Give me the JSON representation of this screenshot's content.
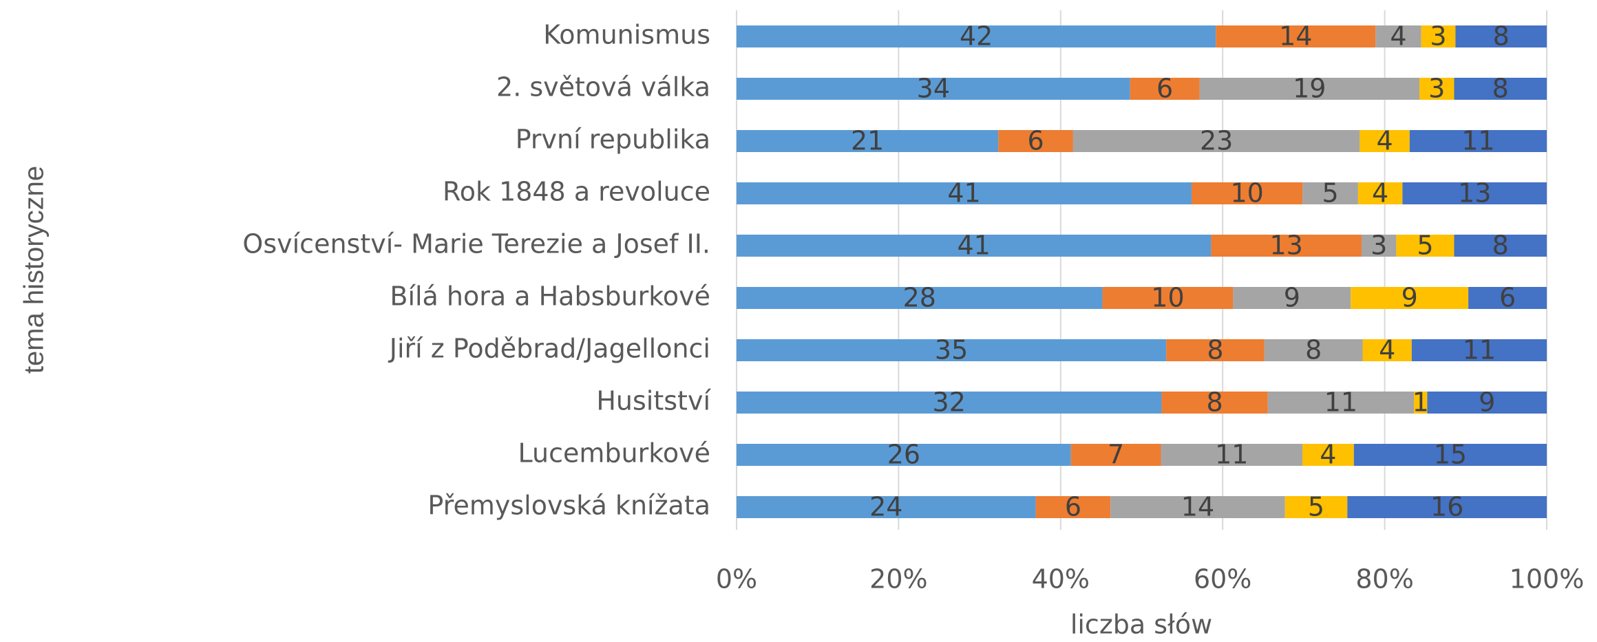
{
  "chart_data": {
    "type": "bar",
    "orientation": "horizontal",
    "stacked": "percent",
    "x_label": "liczba słów",
    "y_label": "tema historyczne",
    "categories": [
      "Komunismus",
      "2. světová válka",
      "První republika",
      "Rok 1848 a revoluce",
      "Osvícenství- Marie Terezie a Josef II.",
      "Bílá hora a Habsburkové",
      "Jiří z Poděbrad/Jagellonci",
      "Husitství",
      "Lucemburkové",
      "Přemyslovská knížata"
    ],
    "series": [
      {
        "color": "#5b9bd5",
        "values": [
          42,
          34,
          21,
          41,
          41,
          28,
          35,
          32,
          26,
          24
        ]
      },
      {
        "color": "#ed7d31",
        "values": [
          14,
          6,
          6,
          10,
          13,
          10,
          8,
          8,
          7,
          6
        ]
      },
      {
        "color": "#a5a5a5",
        "values": [
          4,
          19,
          23,
          5,
          3,
          9,
          8,
          11,
          11,
          14
        ]
      },
      {
        "color": "#ffc000",
        "values": [
          3,
          3,
          4,
          4,
          5,
          9,
          4,
          1,
          4,
          5
        ]
      },
      {
        "color": "#4472c4",
        "values": [
          8,
          8,
          11,
          13,
          8,
          6,
          11,
          9,
          15,
          16
        ]
      }
    ],
    "xlim": [
      0,
      100
    ],
    "xticks": [
      {
        "value": 0,
        "label": "0%"
      },
      {
        "value": 20,
        "label": "20%"
      },
      {
        "value": 40,
        "label": "40%"
      },
      {
        "value": 60,
        "label": "60%"
      },
      {
        "value": 80,
        "label": "80%"
      },
      {
        "value": 100,
        "label": "100%"
      }
    ],
    "grid": true,
    "data_labels": true
  }
}
